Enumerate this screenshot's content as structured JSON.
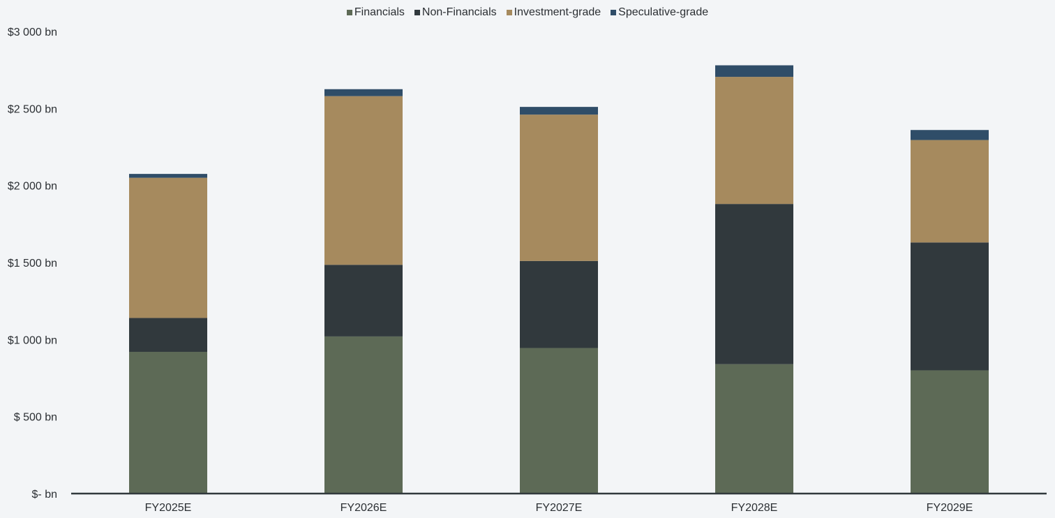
{
  "chart_data": {
    "type": "bar",
    "stacked": true,
    "categories": [
      "FY2025E",
      "FY2026E",
      "FY2027E",
      "FY2028E",
      "FY2029E"
    ],
    "series": [
      {
        "name": "Financials",
        "color": "#5d6a56",
        "values": [
          920,
          1020,
          945,
          840,
          800
        ]
      },
      {
        "name": "Non-Financials",
        "color": "#31393d",
        "values": [
          220,
          465,
          565,
          1040,
          830
        ]
      },
      {
        "name": "Investment-grade",
        "color": "#a68a5e",
        "values": [
          910,
          1095,
          950,
          825,
          665
        ]
      },
      {
        "name": "Speculative-grade",
        "color": "#2f4d68",
        "values": [
          25,
          45,
          50,
          75,
          65
        ]
      }
    ],
    "yticks": [
      {
        "value": 0,
        "label": "$- bn"
      },
      {
        "value": 500,
        "label": "$ 500 bn"
      },
      {
        "value": 1000,
        "label": "$1 000 bn"
      },
      {
        "value": 1500,
        "label": "$1 500 bn"
      },
      {
        "value": 2000,
        "label": "$2 000 bn"
      },
      {
        "value": 2500,
        "label": "$2 500 bn"
      },
      {
        "value": 3000,
        "label": "$3 000 bn"
      }
    ],
    "ylim": [
      0,
      3000
    ],
    "title": "",
    "xlabel": "",
    "ylabel": "",
    "grid": false,
    "legend_position": "top-center",
    "axis_color": "#31393d",
    "background": "#f3f5f7"
  }
}
